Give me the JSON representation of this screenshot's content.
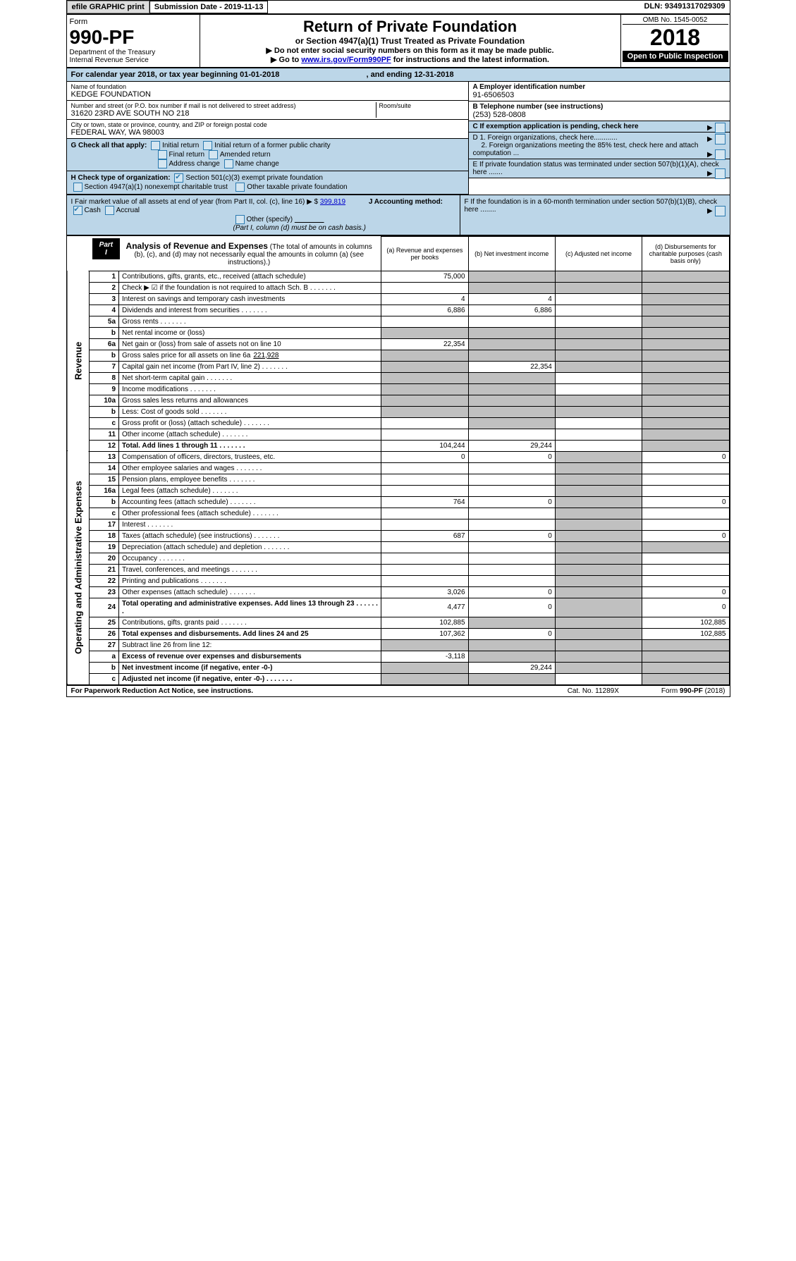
{
  "topbar": {
    "efile": "efile GRAPHIC print",
    "submission": "Submission Date - 2019-11-13",
    "dln": "DLN: 93491317029309"
  },
  "header": {
    "form_label": "Form",
    "form_no": "990-PF",
    "dept": "Department of the Treasury",
    "irs": "Internal Revenue Service",
    "title": "Return of Private Foundation",
    "subtitle": "or Section 4947(a)(1) Trust Treated as Private Foundation",
    "note1": "▶ Do not enter social security numbers on this form as it may be made public.",
    "note2_pre": "▶ Go to ",
    "note2_link": "www.irs.gov/Form990PF",
    "note2_post": " for instructions and the latest information.",
    "omb": "OMB No. 1545-0052",
    "year": "2018",
    "open": "Open to Public Inspection"
  },
  "calyear": {
    "text": "For calendar year 2018, or tax year beginning 01-01-2018",
    "ending": ", and ending 12-31-2018"
  },
  "foundation": {
    "name_lbl": "Name of foundation",
    "name": "KEDGE FOUNDATION",
    "addr_lbl": "Number and street (or P.O. box number if mail is not delivered to street address)",
    "addr": "31620 23RD AVE SOUTH NO 218",
    "room_lbl": "Room/suite",
    "city_lbl": "City or town, state or province, country, and ZIP or foreign postal code",
    "city": "FEDERAL WAY, WA  98003",
    "ein_lbl": "A Employer identification number",
    "ein": "91-6506503",
    "phone_lbl": "B Telephone number (see instructions)",
    "phone": "(253) 528-0808",
    "c_lbl": "C If exemption application is pending, check here",
    "d1": "D 1. Foreign organizations, check here............",
    "d2": "2. Foreign organizations meeting the 85% test, check here and attach computation ...",
    "e_lbl": "E  If private foundation status was terminated under section 507(b)(1)(A), check here .......",
    "f_lbl": "F  If the foundation is in a 60-month termination under section 507(b)(1)(B), check here ........"
  },
  "checks": {
    "g_lbl": "G Check all that apply:",
    "initial": "Initial return",
    "initial_former": "Initial return of a former public charity",
    "final": "Final return",
    "amended": "Amended return",
    "addr_change": "Address change",
    "name_change": "Name change",
    "h_lbl": "H Check type of organization:",
    "h1": "Section 501(c)(3) exempt private foundation",
    "h2": "Section 4947(a)(1) nonexempt charitable trust",
    "h3": "Other taxable private foundation",
    "i_lbl": "I Fair market value of all assets at end of year (from Part II, col. (c), line 16) ▶ $",
    "i_val": "399,819",
    "j_lbl": "J Accounting method:",
    "j_cash": "Cash",
    "j_accrual": "Accrual",
    "j_other": "Other (specify)",
    "j_note": "(Part I, column (d) must be on cash basis.)"
  },
  "part1": {
    "tag": "Part I",
    "title": "Analysis of Revenue and Expenses",
    "note": "(The total of amounts in columns (b), (c), and (d) may not necessarily equal the amounts in column (a) (see instructions).)",
    "col_a": "(a) Revenue and expenses per books",
    "col_b": "(b) Net investment income",
    "col_c": "(c) Adjusted net income",
    "col_d": "(d) Disbursements for charitable purposes (cash basis only)",
    "side_rev": "Revenue",
    "side_exp": "Operating and Administrative Expenses"
  },
  "rows": [
    {
      "n": "1",
      "desc": "Contributions, gifts, grants, etc., received (attach schedule)",
      "a": "75,000",
      "b": "",
      "shade_b": true,
      "shade_c": true,
      "shade_d": true
    },
    {
      "n": "2",
      "desc": "Check ▶ ☑ if the foundation is not required to attach Sch. B",
      "a": "",
      "shade_b": true,
      "shade_c": true,
      "shade_d": true,
      "dots": true
    },
    {
      "n": "3",
      "desc": "Interest on savings and temporary cash investments",
      "a": "4",
      "b": "4",
      "shade_d": true
    },
    {
      "n": "4",
      "desc": "Dividends and interest from securities",
      "a": "6,886",
      "b": "6,886",
      "shade_d": true,
      "dots": true
    },
    {
      "n": "5a",
      "desc": "Gross rents",
      "a": "",
      "shade_d": true,
      "dots": true
    },
    {
      "n": "b",
      "desc": "Net rental income or (loss)",
      "a": "",
      "shade_a": true,
      "shade_b": true,
      "shade_c": true,
      "shade_d": true,
      "underline": true
    },
    {
      "n": "6a",
      "desc": "Net gain or (loss) from sale of assets not on line 10",
      "a": "22,354",
      "shade_b": true,
      "shade_c": true,
      "shade_d": true
    },
    {
      "n": "b",
      "desc": "Gross sales price for all assets on line 6a",
      "inline": "221,928",
      "shade_a": true,
      "shade_b": true,
      "shade_c": true,
      "shade_d": true
    },
    {
      "n": "7",
      "desc": "Capital gain net income (from Part IV, line 2)",
      "b": "22,354",
      "shade_a": true,
      "shade_c": true,
      "shade_d": true,
      "dots": true
    },
    {
      "n": "8",
      "desc": "Net short-term capital gain",
      "shade_a": true,
      "shade_b": true,
      "shade_d": true,
      "dots": true
    },
    {
      "n": "9",
      "desc": "Income modifications",
      "shade_a": true,
      "shade_b": true,
      "shade_d": true,
      "dots": true
    },
    {
      "n": "10a",
      "desc": "Gross sales less returns and allowances",
      "shade_a": true,
      "shade_b": true,
      "shade_c": true,
      "shade_d": true,
      "underline": true
    },
    {
      "n": "b",
      "desc": "Less: Cost of goods sold",
      "shade_a": true,
      "shade_b": true,
      "shade_c": true,
      "shade_d": true,
      "dots": true,
      "underline": true
    },
    {
      "n": "c",
      "desc": "Gross profit or (loss) (attach schedule)",
      "shade_b": true,
      "shade_d": true,
      "dots": true
    },
    {
      "n": "11",
      "desc": "Other income (attach schedule)",
      "shade_d": true,
      "dots": true
    },
    {
      "n": "12",
      "desc": "Total. Add lines 1 through 11",
      "bold": true,
      "a": "104,244",
      "b": "29,244",
      "shade_d": true,
      "dots": true
    },
    {
      "n": "13",
      "desc": "Compensation of officers, directors, trustees, etc.",
      "a": "0",
      "b": "0",
      "d": "0",
      "shade_c": true,
      "exp": true
    },
    {
      "n": "14",
      "desc": "Other employee salaries and wages",
      "shade_c": true,
      "exp": true,
      "dots": true
    },
    {
      "n": "15",
      "desc": "Pension plans, employee benefits",
      "shade_c": true,
      "exp": true,
      "dots": true
    },
    {
      "n": "16a",
      "desc": "Legal fees (attach schedule)",
      "shade_c": true,
      "exp": true,
      "dots": true
    },
    {
      "n": "b",
      "desc": "Accounting fees (attach schedule)",
      "a": "764",
      "b": "0",
      "d": "0",
      "shade_c": true,
      "exp": true,
      "dots": true
    },
    {
      "n": "c",
      "desc": "Other professional fees (attach schedule)",
      "shade_c": true,
      "exp": true,
      "dots": true
    },
    {
      "n": "17",
      "desc": "Interest",
      "shade_c": true,
      "exp": true,
      "dots": true
    },
    {
      "n": "18",
      "desc": "Taxes (attach schedule) (see instructions)",
      "a": "687",
      "b": "0",
      "d": "0",
      "shade_c": true,
      "exp": true,
      "dots": true
    },
    {
      "n": "19",
      "desc": "Depreciation (attach schedule) and depletion",
      "shade_c": true,
      "shade_d": true,
      "exp": true,
      "dots": true
    },
    {
      "n": "20",
      "desc": "Occupancy",
      "shade_c": true,
      "exp": true,
      "dots": true
    },
    {
      "n": "21",
      "desc": "Travel, conferences, and meetings",
      "shade_c": true,
      "exp": true,
      "dots": true
    },
    {
      "n": "22",
      "desc": "Printing and publications",
      "shade_c": true,
      "exp": true,
      "dots": true
    },
    {
      "n": "23",
      "desc": "Other expenses (attach schedule)",
      "a": "3,026",
      "b": "0",
      "d": "0",
      "shade_c": true,
      "exp": true,
      "dots": true
    },
    {
      "n": "24",
      "desc": "Total operating and administrative expenses. Add lines 13 through 23",
      "bold": true,
      "a": "4,477",
      "b": "0",
      "d": "0",
      "shade_c": true,
      "exp": true,
      "dots": true
    },
    {
      "n": "25",
      "desc": "Contributions, gifts, grants paid",
      "a": "102,885",
      "d": "102,885",
      "shade_b": true,
      "shade_c": true,
      "exp": true,
      "dots": true
    },
    {
      "n": "26",
      "desc": "Total expenses and disbursements. Add lines 24 and 25",
      "bold": true,
      "a": "107,362",
      "b": "0",
      "d": "102,885",
      "shade_c": true,
      "exp": true
    },
    {
      "n": "27",
      "desc": "Subtract line 26 from line 12:",
      "shade_a": true,
      "shade_b": true,
      "shade_c": true,
      "shade_d": true,
      "exp": true
    },
    {
      "n": "a",
      "desc": "Excess of revenue over expenses and disbursements",
      "bold": true,
      "a": "-3,118",
      "shade_b": true,
      "shade_c": true,
      "shade_d": true,
      "exp": true
    },
    {
      "n": "b",
      "desc": "Net investment income (if negative, enter -0-)",
      "bold": true,
      "b": "29,244",
      "shade_a": true,
      "shade_c": true,
      "shade_d": true,
      "exp": true
    },
    {
      "n": "c",
      "desc": "Adjusted net income (if negative, enter -0-)",
      "bold": true,
      "shade_a": true,
      "shade_b": true,
      "shade_d": true,
      "exp": true,
      "dots": true
    }
  ],
  "footer": {
    "left": "For Paperwork Reduction Act Notice, see instructions.",
    "mid": "Cat. No. 11289X",
    "right": "Form 990-PF (2018)"
  }
}
